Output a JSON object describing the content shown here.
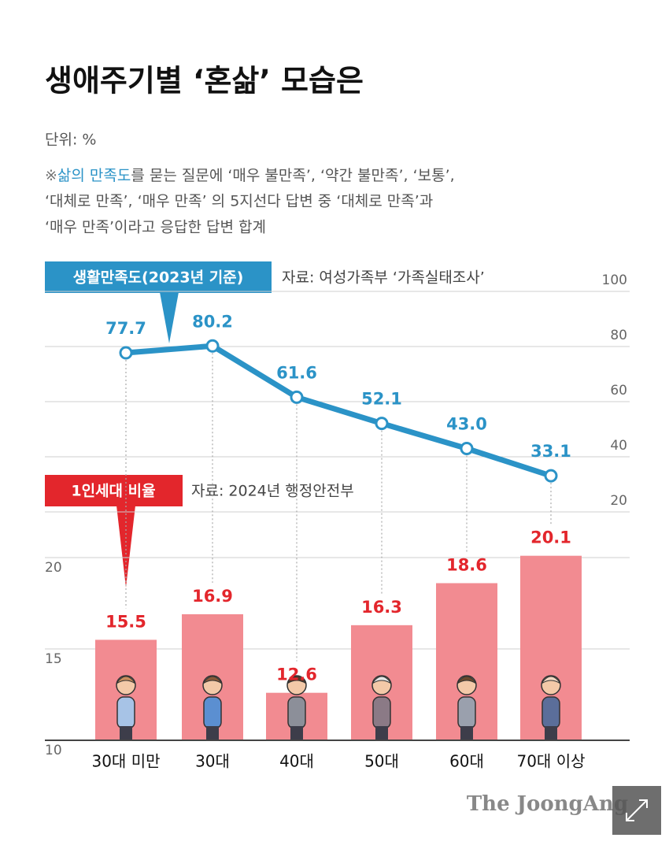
{
  "title": "생애주기별 ‘혼삶’ 모습은",
  "unit": "단위: %",
  "note": {
    "mark": "※",
    "highlight": "삶의 만족도",
    "lines": [
      "를 묻는 질문에 ‘매우 불만족’, ‘약간 불만족’, ‘보통’,",
      "‘대체로 만족’, ‘매우 만족’ 의 5지선다 답변 중 ‘대체로 만족’과",
      "‘매우 만족’이라고 응답한 답변 합계"
    ]
  },
  "chart_data": [
    {
      "type": "line",
      "title": "생활만족도(2023년 기준)",
      "source": "자료: 여성가족부 ‘가족실태조사’",
      "values": [
        77.7,
        80.2,
        61.6,
        52.1,
        43.0,
        33.1
      ],
      "value_labels": [
        "77.7",
        "80.2",
        "61.6",
        "52.1",
        "43.0",
        "33.1"
      ],
      "color": "#2b93c7",
      "ylim": [
        20,
        100
      ],
      "yticks": [
        20,
        40,
        60,
        80,
        100
      ],
      "grid": true
    },
    {
      "type": "bar",
      "title": "1인세대 비율",
      "source": "자료: 2024년 행정안전부",
      "categories": [
        "30대 미만",
        "30대",
        "40대",
        "50대",
        "60대",
        "70대 이상"
      ],
      "values": [
        15.5,
        16.9,
        12.6,
        16.3,
        18.6,
        20.1
      ],
      "color": "#f28b91",
      "label_color": "#e3262c",
      "ylim": [
        10,
        20
      ],
      "yticks": [
        10,
        15,
        20
      ],
      "grid": true
    }
  ],
  "footer": "The JoongAng"
}
